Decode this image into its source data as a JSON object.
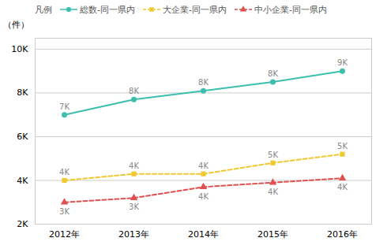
{
  "chart_data": {
    "type": "line",
    "ylabel": "（件）",
    "legend_title": "凡例",
    "categories": [
      "2012年",
      "2013年",
      "2014年",
      "2015年",
      "2016年"
    ],
    "series": [
      {
        "name": "総数-同一県内",
        "color": "#3dbfad",
        "marker": "circle",
        "line_style": "solid",
        "values": [
          7000,
          7700,
          8100,
          8500,
          9000
        ],
        "value_labels": [
          "7K",
          "8K",
          "8K",
          "8K",
          "9K"
        ]
      },
      {
        "name": "大企業-同一県内",
        "color": "#f0c830",
        "marker": "square",
        "line_style": "dashed",
        "values": [
          4000,
          4300,
          4300,
          4800,
          5200
        ],
        "value_labels": [
          "4K",
          "4K",
          "4K",
          "5K",
          "5K"
        ]
      },
      {
        "name": "中小企業-同一県内",
        "color": "#e05050",
        "marker": "triangle",
        "line_style": "dashed",
        "values": [
          3000,
          3200,
          3700,
          3900,
          4100
        ],
        "value_labels": [
          "3K",
          "3K",
          "4K",
          "4K",
          "4K"
        ]
      }
    ],
    "ylim": [
      2000,
      10500
    ],
    "yticks": [
      {
        "value": 2000,
        "label": "2K"
      },
      {
        "value": 4000,
        "label": "4K"
      },
      {
        "value": 6000,
        "label": "6K"
      },
      {
        "value": 8000,
        "label": "8K"
      },
      {
        "value": 10000,
        "label": "10K"
      }
    ],
    "grid": true,
    "legend": "top",
    "data_labels": true
  }
}
